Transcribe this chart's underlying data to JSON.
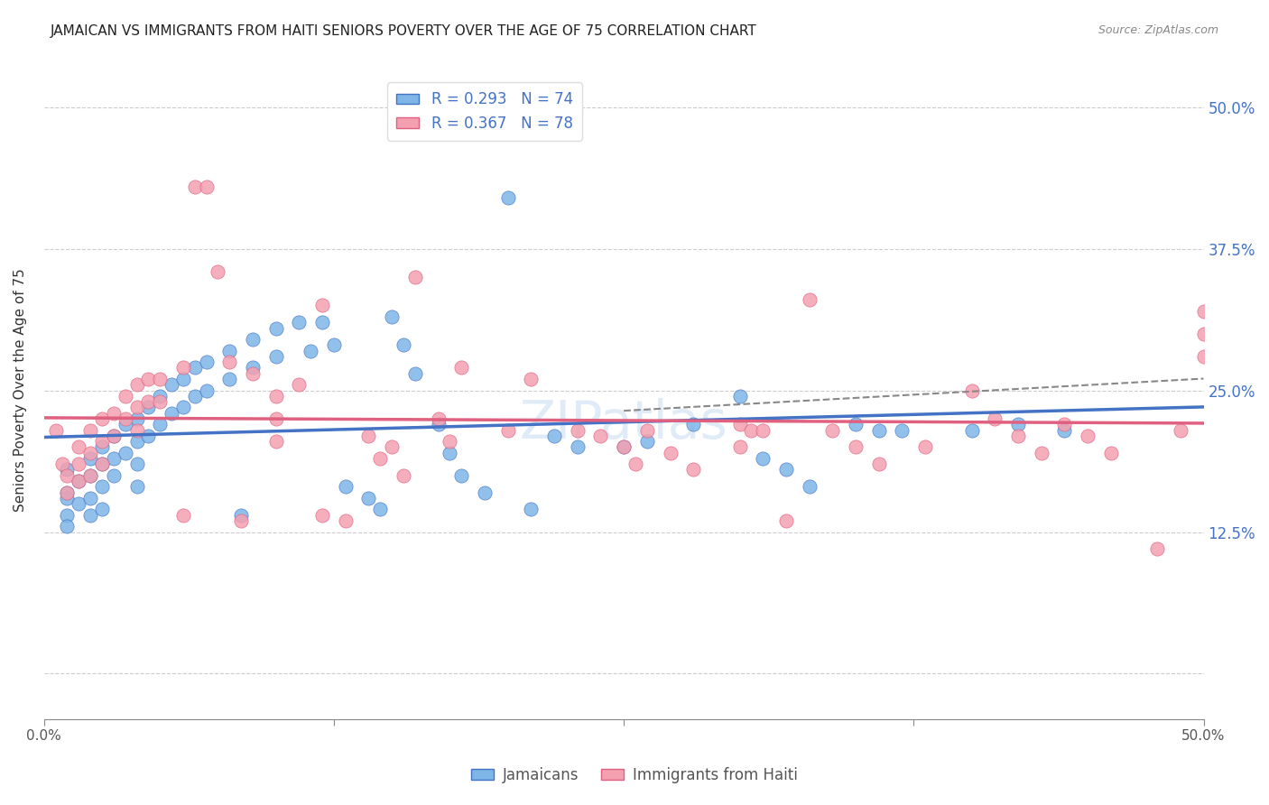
{
  "title": "JAMAICAN VS IMMIGRANTS FROM HAITI SENIORS POVERTY OVER THE AGE OF 75 CORRELATION CHART",
  "source": "Source: ZipAtlas.com",
  "ylabel": "Seniors Poverty Over the Age of 75",
  "xlabel": "",
  "xlim": [
    0.0,
    0.5
  ],
  "ylim": [
    -0.02,
    0.52
  ],
  "xticks": [
    0.0,
    0.125,
    0.25,
    0.375,
    0.5
  ],
  "xtick_labels": [
    "0.0%",
    "",
    "",
    "",
    "50.0%"
  ],
  "ytick_labels_right": [
    "50.0%",
    "37.5%",
    "25.0%",
    "12.5%",
    ""
  ],
  "yticks_right": [
    0.5,
    0.375,
    0.25,
    0.125,
    0.0
  ],
  "legend_label1": "R = 0.293   N = 74",
  "legend_label2": "R = 0.367   N = 78",
  "legend_label1_short": "Jamaicans",
  "legend_label2_short": "Immigrants from Haiti",
  "color_blue": "#7EB6E8",
  "color_pink": "#F4A0B0",
  "color_line_blue": "#4472C4",
  "color_line_pink": "#E06080",
  "color_dashed": "#888888",
  "color_text_blue": "#4472C4",
  "watermark": "ZIPatlas",
  "R1": 0.293,
  "N1": 74,
  "R2": 0.367,
  "N2": 78,
  "blue_x": [
    0.01,
    0.01,
    0.01,
    0.01,
    0.01,
    0.015,
    0.015,
    0.02,
    0.02,
    0.02,
    0.02,
    0.025,
    0.025,
    0.025,
    0.025,
    0.03,
    0.03,
    0.03,
    0.035,
    0.035,
    0.04,
    0.04,
    0.04,
    0.04,
    0.045,
    0.045,
    0.05,
    0.05,
    0.055,
    0.055,
    0.06,
    0.06,
    0.065,
    0.065,
    0.07,
    0.07,
    0.08,
    0.08,
    0.085,
    0.09,
    0.09,
    0.1,
    0.1,
    0.11,
    0.115,
    0.12,
    0.125,
    0.13,
    0.14,
    0.145,
    0.15,
    0.155,
    0.16,
    0.17,
    0.175,
    0.18,
    0.19,
    0.2,
    0.21,
    0.22,
    0.23,
    0.25,
    0.26,
    0.28,
    0.3,
    0.31,
    0.32,
    0.33,
    0.35,
    0.36,
    0.37,
    0.4,
    0.42,
    0.44
  ],
  "blue_y": [
    0.18,
    0.16,
    0.155,
    0.14,
    0.13,
    0.17,
    0.15,
    0.19,
    0.175,
    0.155,
    0.14,
    0.2,
    0.185,
    0.165,
    0.145,
    0.21,
    0.19,
    0.175,
    0.22,
    0.195,
    0.225,
    0.205,
    0.185,
    0.165,
    0.235,
    0.21,
    0.245,
    0.22,
    0.255,
    0.23,
    0.26,
    0.235,
    0.27,
    0.245,
    0.275,
    0.25,
    0.285,
    0.26,
    0.14,
    0.295,
    0.27,
    0.305,
    0.28,
    0.31,
    0.285,
    0.31,
    0.29,
    0.165,
    0.155,
    0.145,
    0.315,
    0.29,
    0.265,
    0.22,
    0.195,
    0.175,
    0.16,
    0.42,
    0.145,
    0.21,
    0.2,
    0.2,
    0.205,
    0.22,
    0.245,
    0.19,
    0.18,
    0.165,
    0.22,
    0.215,
    0.215,
    0.215,
    0.22,
    0.215
  ],
  "pink_x": [
    0.005,
    0.008,
    0.01,
    0.01,
    0.015,
    0.015,
    0.015,
    0.02,
    0.02,
    0.02,
    0.025,
    0.025,
    0.025,
    0.03,
    0.03,
    0.035,
    0.035,
    0.04,
    0.04,
    0.04,
    0.045,
    0.045,
    0.05,
    0.05,
    0.06,
    0.06,
    0.065,
    0.07,
    0.075,
    0.08,
    0.085,
    0.09,
    0.1,
    0.1,
    0.1,
    0.11,
    0.12,
    0.12,
    0.13,
    0.14,
    0.145,
    0.15,
    0.155,
    0.16,
    0.17,
    0.175,
    0.18,
    0.2,
    0.21,
    0.23,
    0.24,
    0.25,
    0.255,
    0.26,
    0.27,
    0.28,
    0.3,
    0.3,
    0.305,
    0.31,
    0.32,
    0.33,
    0.34,
    0.35,
    0.36,
    0.38,
    0.4,
    0.41,
    0.42,
    0.43,
    0.44,
    0.45,
    0.46,
    0.48,
    0.49,
    0.5,
    0.5,
    0.5
  ],
  "pink_y": [
    0.215,
    0.185,
    0.175,
    0.16,
    0.2,
    0.185,
    0.17,
    0.215,
    0.195,
    0.175,
    0.225,
    0.205,
    0.185,
    0.23,
    0.21,
    0.245,
    0.225,
    0.255,
    0.235,
    0.215,
    0.26,
    0.24,
    0.26,
    0.24,
    0.27,
    0.14,
    0.43,
    0.43,
    0.355,
    0.275,
    0.135,
    0.265,
    0.245,
    0.225,
    0.205,
    0.255,
    0.325,
    0.14,
    0.135,
    0.21,
    0.19,
    0.2,
    0.175,
    0.35,
    0.225,
    0.205,
    0.27,
    0.215,
    0.26,
    0.215,
    0.21,
    0.2,
    0.185,
    0.215,
    0.195,
    0.18,
    0.22,
    0.2,
    0.215,
    0.215,
    0.135,
    0.33,
    0.215,
    0.2,
    0.185,
    0.2,
    0.25,
    0.225,
    0.21,
    0.195,
    0.22,
    0.21,
    0.195,
    0.11,
    0.215,
    0.28,
    0.32,
    0.3
  ]
}
